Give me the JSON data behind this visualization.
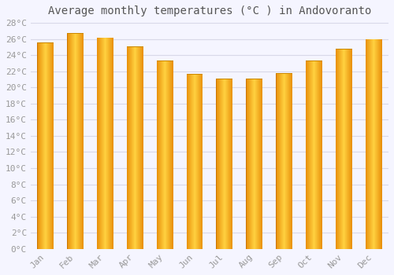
{
  "title": "Average monthly temperatures (°C ) in Andovoranto",
  "months": [
    "Jan",
    "Feb",
    "Mar",
    "Apr",
    "May",
    "Jun",
    "Jul",
    "Aug",
    "Sep",
    "Oct",
    "Nov",
    "Dec"
  ],
  "values": [
    25.6,
    26.7,
    26.2,
    25.1,
    23.3,
    21.7,
    21.1,
    21.1,
    21.8,
    23.3,
    24.8,
    26.0
  ],
  "bar_color_dark": "#E8900A",
  "bar_color_mid": "#FFA500",
  "bar_color_light": "#FFD060",
  "ylim": [
    0,
    28
  ],
  "ytick_step": 2,
  "background_color": "#f5f5ff",
  "grid_color": "#d8d8e8",
  "title_fontsize": 10,
  "tick_fontsize": 8,
  "tick_color": "#999999",
  "font_family": "monospace"
}
